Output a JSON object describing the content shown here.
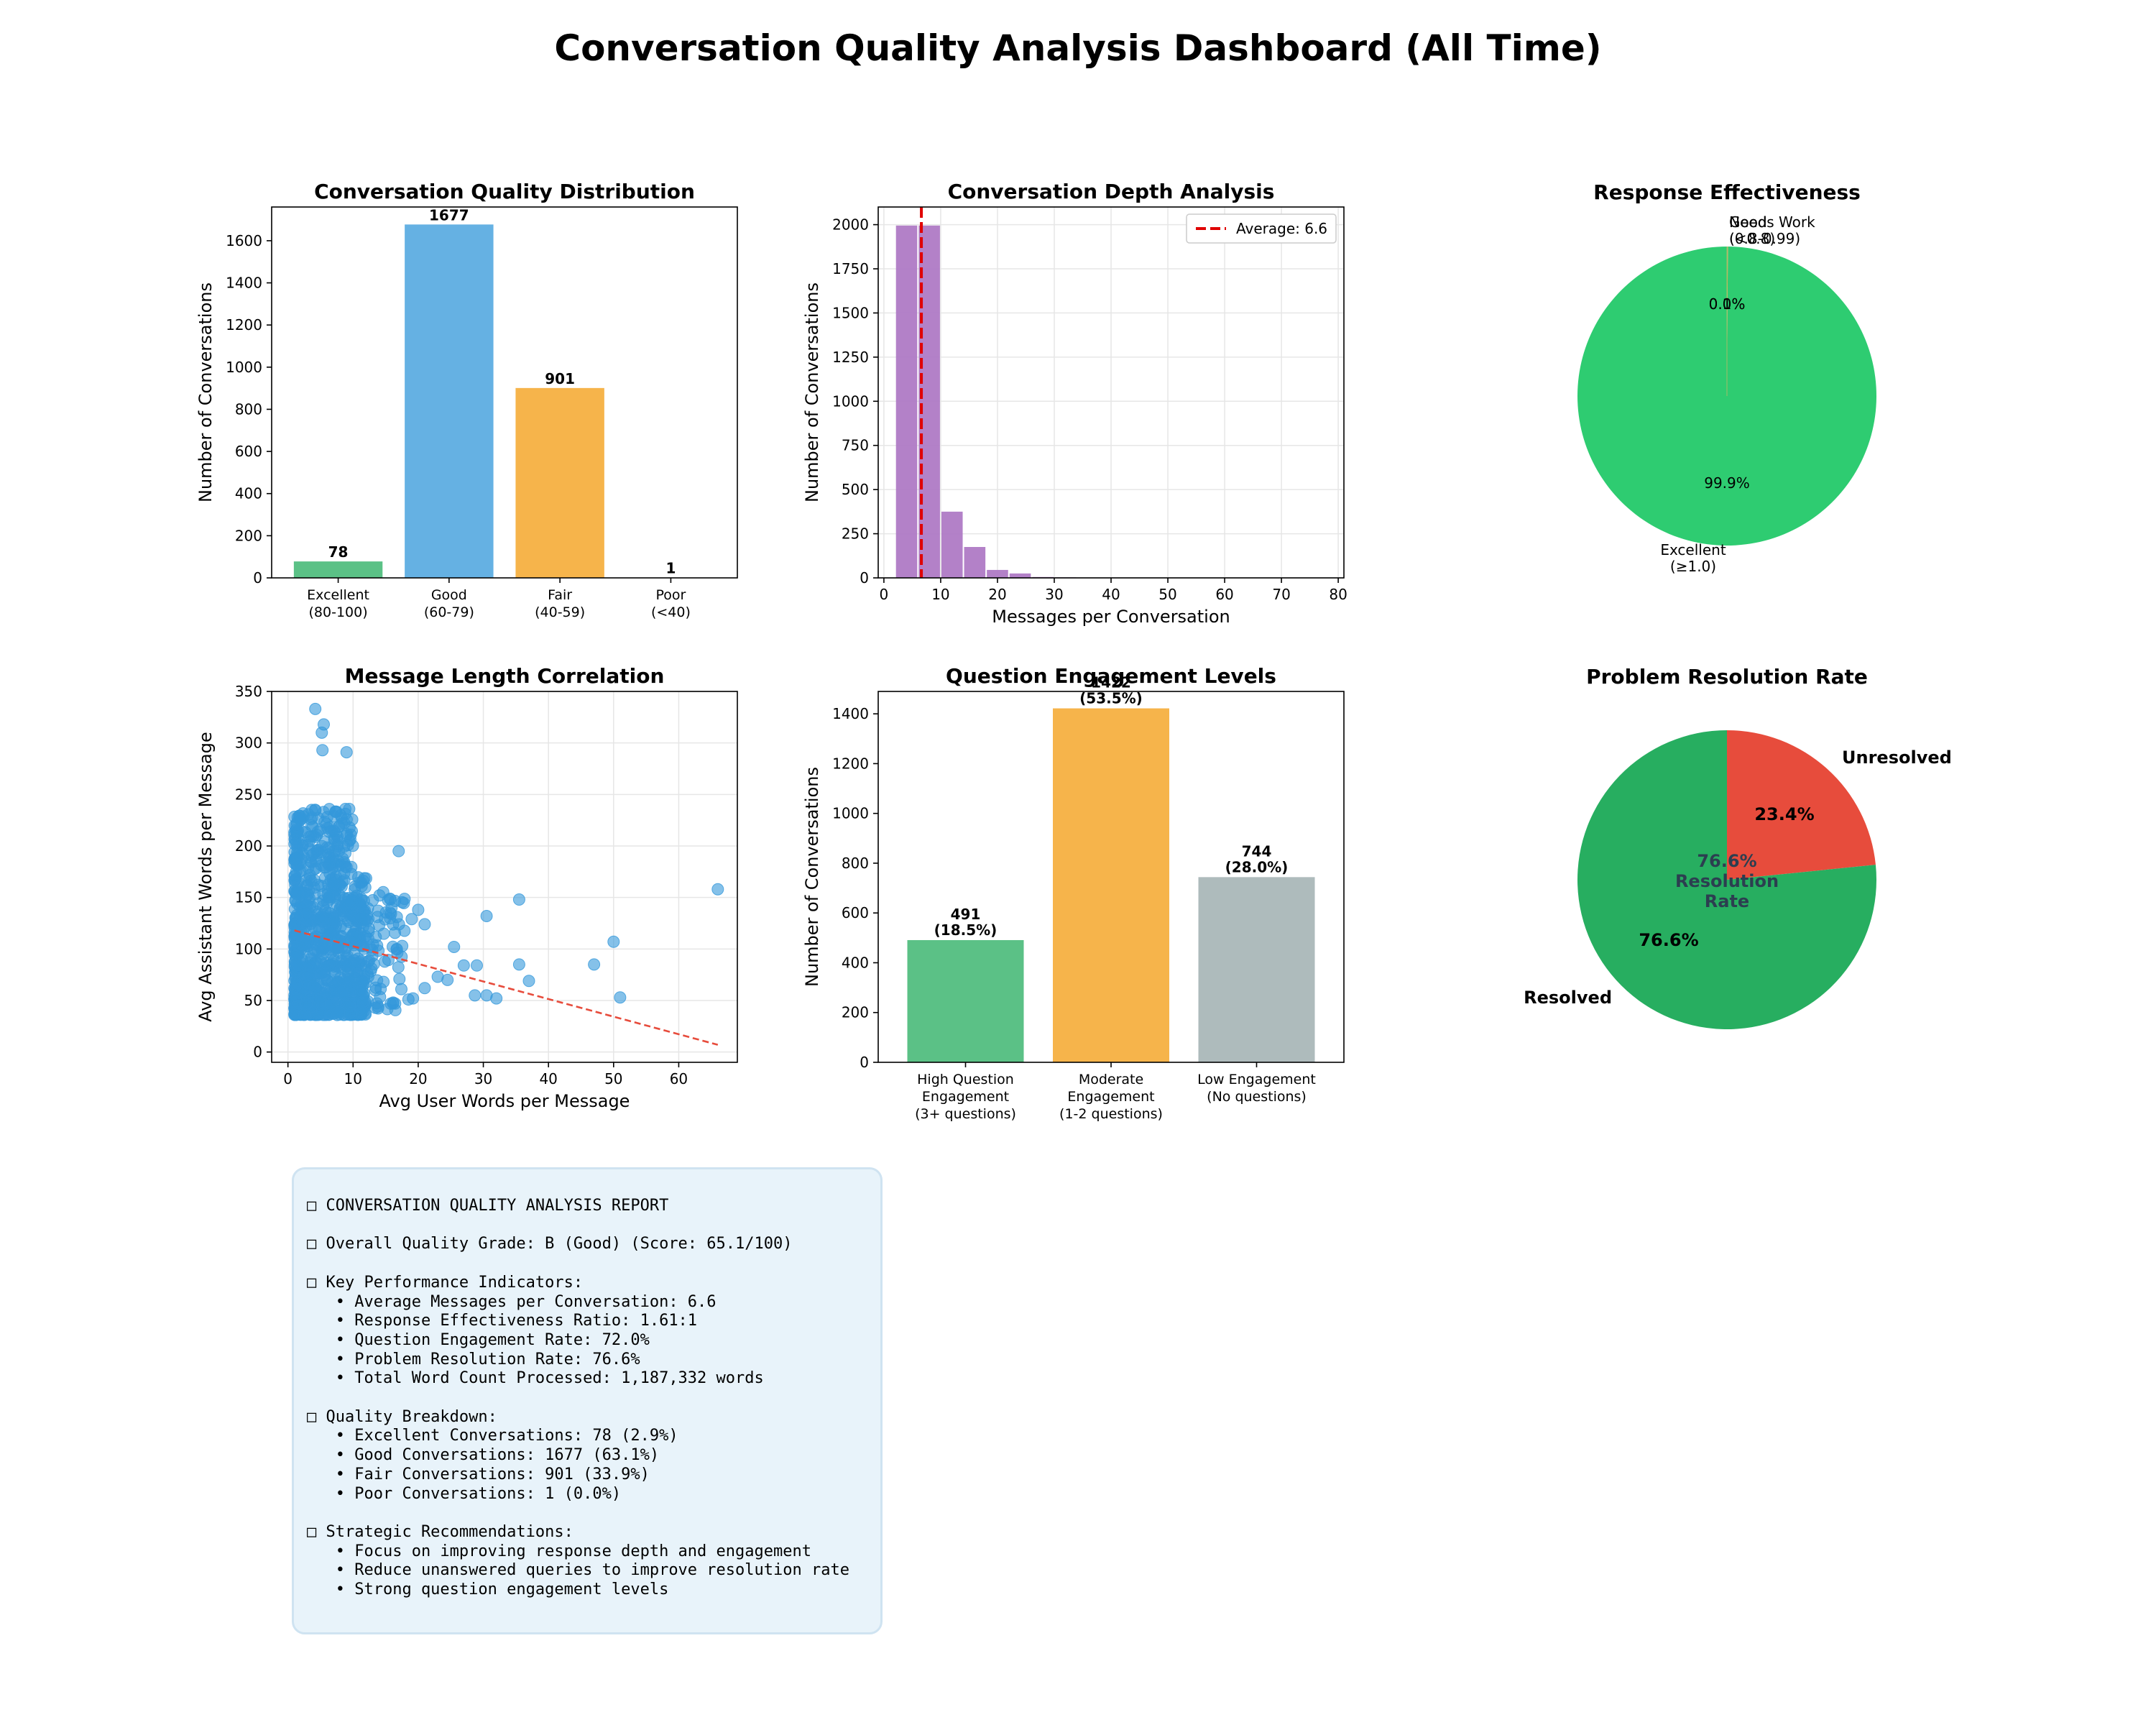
{
  "dashboard_title": "Conversation Quality Analysis Dashboard (All Time)",
  "colors": {
    "green": "#52be80",
    "blue": "#5dade2",
    "orange": "#f5b041",
    "purple": "#af7ac5",
    "gray": "#aab7b8",
    "scatter": "#3498db",
    "pie_green": "#2ecc71",
    "resolved": "#27ae60",
    "unresolved": "#e74c3c",
    "trend": "#e74c3c",
    "report_bg": "#e8f3fa",
    "report_border": "#cfe3f1"
  },
  "chart_data": [
    {
      "id": "quality",
      "type": "bar",
      "title": "Conversation Quality Distribution",
      "ylabel": "Number of Conversations",
      "xlabel": "",
      "categories": [
        [
          "Excellent",
          "(80-100)"
        ],
        [
          "Good",
          "(60-79)"
        ],
        [
          "Fair",
          "(40-59)"
        ],
        [
          "Poor",
          "(<40)"
        ]
      ],
      "values": [
        78,
        1677,
        901,
        1
      ],
      "bar_labels": [
        "78",
        "1677",
        "901",
        "1"
      ],
      "ylim": [
        0,
        1760
      ],
      "yticks": [
        0,
        200,
        400,
        600,
        800,
        1000,
        1200,
        1400,
        1600
      ],
      "bar_colors": [
        "#52be80",
        "#5dade2",
        "#f5b041",
        "#ec7063"
      ],
      "grid": false
    },
    {
      "id": "depth",
      "type": "bar",
      "title": "Conversation Depth Analysis",
      "xlabel": "Messages per Conversation",
      "ylabel": "Number of Conversations",
      "bin_width": 4,
      "bins": [
        [
          2,
          1995
        ],
        [
          6,
          1995
        ],
        [
          10,
          375
        ],
        [
          14,
          175
        ],
        [
          18,
          45
        ],
        [
          22,
          25
        ],
        [
          26,
          5
        ],
        [
          30,
          3
        ],
        [
          34,
          2
        ],
        [
          38,
          1
        ],
        [
          42,
          1
        ],
        [
          46,
          0
        ],
        [
          50,
          1
        ],
        [
          54,
          0
        ],
        [
          58,
          1
        ],
        [
          62,
          0
        ],
        [
          66,
          1
        ],
        [
          70,
          0
        ],
        [
          74,
          1
        ]
      ],
      "average": 6.6,
      "legend": "Average: 6.6",
      "xlim": [
        -1,
        81
      ],
      "ylim": [
        0,
        2100
      ],
      "xticks": [
        0,
        10,
        20,
        30,
        40,
        50,
        60,
        70,
        80
      ],
      "yticks": [
        0,
        250,
        500,
        750,
        1000,
        1250,
        1500,
        1750,
        2000
      ],
      "grid": true,
      "legend_position": "upper right"
    },
    {
      "id": "effectiveness",
      "type": "pie",
      "title": "Response Effectiveness",
      "slices": [
        {
          "label": [
            "Excellent",
            "(≥1.0)"
          ],
          "value": 99.9,
          "pct": "99.9%",
          "color": "#2ecc71"
        },
        {
          "label": [
            "Good",
            "(0.8-0.99)"
          ],
          "value": 0.05,
          "pct": "0.0%",
          "color": "#f5b041"
        },
        {
          "label": [
            "Needs Work",
            "(<0.8)"
          ],
          "value": 0.05,
          "pct": "0.1%",
          "color": "#e74c3c"
        }
      ]
    },
    {
      "id": "correlation",
      "type": "scatter",
      "title": "Message Length Correlation",
      "xlabel": "Avg User Words per Message",
      "ylabel": "Avg Assistant Words per Message",
      "xlim": [
        -2.5,
        69
      ],
      "ylim": [
        -10,
        350
      ],
      "xticks": [
        0,
        10,
        20,
        30,
        40,
        50,
        60
      ],
      "yticks": [
        0,
        50,
        100,
        150,
        200,
        250,
        300,
        350
      ],
      "outliers": [
        [
          66,
          158
        ],
        [
          50,
          107
        ],
        [
          51,
          53
        ],
        [
          47,
          85
        ],
        [
          35.5,
          148
        ],
        [
          35.5,
          85
        ],
        [
          37,
          69
        ],
        [
          30.5,
          132
        ],
        [
          29,
          84
        ],
        [
          28.7,
          55
        ],
        [
          30.5,
          55
        ],
        [
          32,
          52
        ],
        [
          27,
          84
        ],
        [
          25.5,
          102
        ],
        [
          24.5,
          70
        ],
        [
          23,
          73
        ],
        [
          21,
          62
        ],
        [
          20,
          138
        ],
        [
          19,
          129
        ],
        [
          19.2,
          52
        ],
        [
          18.5,
          51
        ],
        [
          21,
          124
        ],
        [
          17,
          195
        ],
        [
          4.2,
          333
        ],
        [
          5.5,
          318
        ],
        [
          5.2,
          310
        ],
        [
          9,
          291
        ],
        [
          5.3,
          293
        ]
      ],
      "trend": [
        [
          1,
          118
        ],
        [
          66,
          7
        ]
      ],
      "grid": true
    },
    {
      "id": "engagement",
      "type": "bar",
      "title": "Question Engagement Levels",
      "ylabel": "Number of Conversations",
      "xlabel": "",
      "categories": [
        [
          "High Question",
          "Engagement",
          "(3+ questions)"
        ],
        [
          "Moderate",
          "Engagement",
          "(1-2 questions)"
        ],
        [
          "Low Engagement",
          "(No questions)"
        ]
      ],
      "values": [
        491,
        1422,
        744
      ],
      "bar_labels": [
        [
          "491",
          "(18.5%)"
        ],
        [
          "1422",
          "(53.5%)"
        ],
        [
          "744",
          "(28.0%)"
        ]
      ],
      "ylim": [
        0,
        1490
      ],
      "yticks": [
        0,
        200,
        400,
        600,
        800,
        1000,
        1200,
        1400
      ],
      "bar_colors": [
        "#52be80",
        "#f5b041",
        "#aab7b8"
      ],
      "grid": false
    },
    {
      "id": "resolution",
      "type": "pie",
      "title": "Problem Resolution Rate",
      "slices": [
        {
          "label": "Unresolved",
          "value": 23.4,
          "pct": "23.4%",
          "color": "#e74c3c"
        },
        {
          "label": "Resolved",
          "value": 76.6,
          "pct": "76.6%",
          "color": "#27ae60"
        }
      ],
      "center_text": [
        "76.6%",
        "Resolution",
        "Rate"
      ]
    }
  ],
  "report": {
    "lines": [
      "□ CONVERSATION QUALITY ANALYSIS REPORT",
      "",
      "□ Overall Quality Grade: B (Good) (Score: 65.1/100)",
      "",
      "□ Key Performance Indicators:",
      "   • Average Messages per Conversation: 6.6",
      "   • Response Effectiveness Ratio: 1.61:1",
      "   • Question Engagement Rate: 72.0%",
      "   • Problem Resolution Rate: 76.6%",
      "   • Total Word Count Processed: 1,187,332 words",
      "",
      "□ Quality Breakdown:",
      "   • Excellent Conversations: 78 (2.9%)",
      "   • Good Conversations: 1677 (63.1%)",
      "   • Fair Conversations: 901 (33.9%)",
      "   • Poor Conversations: 1 (0.0%)",
      "",
      "□ Strategic Recommendations:",
      "   • Focus on improving response depth and engagement",
      "   • Reduce unanswered queries to improve resolution rate",
      "   • Strong question engagement levels"
    ]
  }
}
